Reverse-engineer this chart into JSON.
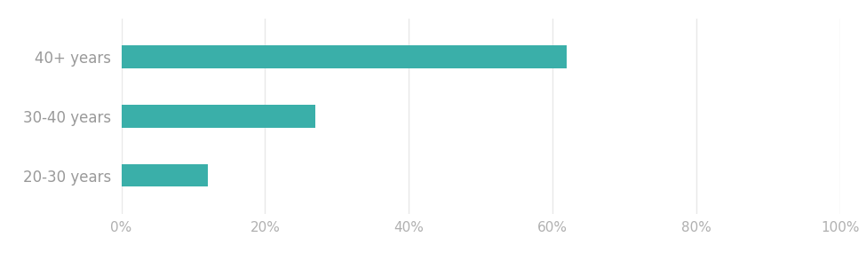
{
  "categories": [
    "40+ years",
    "30-40 years",
    "20-30 years"
  ],
  "values": [
    62,
    27,
    12
  ],
  "bar_color": "#3aafa9",
  "background_color": "#ffffff",
  "xlim": [
    0,
    100
  ],
  "xticks": [
    0,
    20,
    40,
    60,
    80,
    100
  ],
  "tick_label_color": "#b0b0b0",
  "category_label_color": "#999999",
  "grid_color": "#e8e8e8",
  "bar_height": 0.38,
  "figsize": [
    9.75,
    2.94
  ],
  "dpi": 100,
  "tick_fontsize": 11,
  "label_fontsize": 12
}
